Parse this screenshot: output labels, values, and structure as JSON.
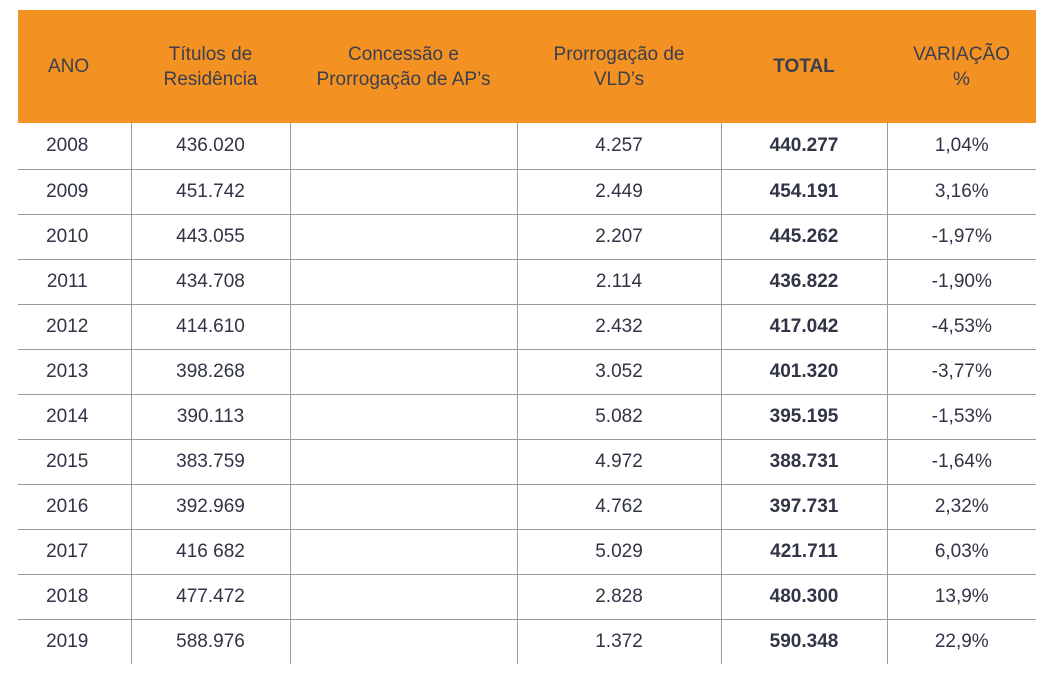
{
  "table": {
    "headers": {
      "ano": [
        "ANO"
      ],
      "titulos": [
        "Títulos de",
        "Residência"
      ],
      "concessao": [
        "Concessão e",
        "Prorrogação de AP’s"
      ],
      "prorrogacao": [
        "Prorrogação de",
        "VLD’s"
      ],
      "total": [
        "TOTAL"
      ],
      "variacao": [
        "VARIAÇÃO",
        "%"
      ]
    },
    "rows": [
      {
        "ano": "2008",
        "titulos": "436.020",
        "concessao": "",
        "prorrogacao": "4.257",
        "total": "440.277",
        "variacao": "1,04%"
      },
      {
        "ano": "2009",
        "titulos": "451.742",
        "concessao": "",
        "prorrogacao": "2.449",
        "total": "454.191",
        "variacao": "3,16%"
      },
      {
        "ano": "2010",
        "titulos": "443.055",
        "concessao": "",
        "prorrogacao": "2.207",
        "total": "445.262",
        "variacao": "-1,97%"
      },
      {
        "ano": "2011",
        "titulos": "434.708",
        "concessao": "",
        "prorrogacao": "2.114",
        "total": "436.822",
        "variacao": "-1,90%"
      },
      {
        "ano": "2012",
        "titulos": "414.610",
        "concessao": "",
        "prorrogacao": "2.432",
        "total": "417.042",
        "variacao": "-4,53%"
      },
      {
        "ano": "2013",
        "titulos": "398.268",
        "concessao": "",
        "prorrogacao": "3.052",
        "total": "401.320",
        "variacao": "-3,77%"
      },
      {
        "ano": "2014",
        "titulos": "390.113",
        "concessao": "",
        "prorrogacao": "5.082",
        "total": "395.195",
        "variacao": "-1,53%"
      },
      {
        "ano": "2015",
        "titulos": "383.759",
        "concessao": "",
        "prorrogacao": "4.972",
        "total": "388.731",
        "variacao": "-1,64%"
      },
      {
        "ano": "2016",
        "titulos": "392.969",
        "concessao": "",
        "prorrogacao": "4.762",
        "total": "397.731",
        "variacao": "2,32%"
      },
      {
        "ano": "2017",
        "titulos": "416 682",
        "concessao": "",
        "prorrogacao": "5.029",
        "total": "421.711",
        "variacao": "6,03%"
      },
      {
        "ano": "2018",
        "titulos": "477.472",
        "concessao": "",
        "prorrogacao": "2.828",
        "total": "480.300",
        "variacao": "13,9%"
      },
      {
        "ano": "2019",
        "titulos": "588.976",
        "concessao": "",
        "prorrogacao": "1.372",
        "total": "590.348",
        "variacao": "22,9%"
      }
    ]
  },
  "colors": {
    "header_background": "#f39222",
    "header_text": "#3b3e4f",
    "grid_line": "#9a9a9a",
    "body_text": "#303444"
  }
}
